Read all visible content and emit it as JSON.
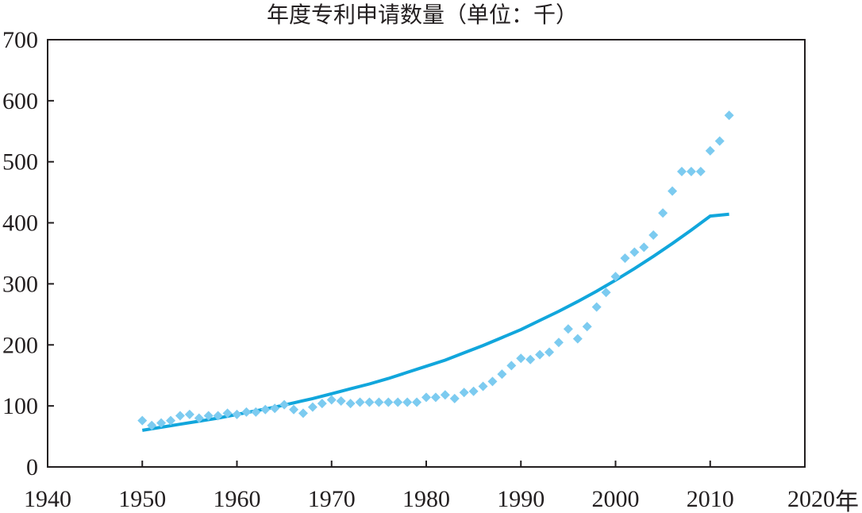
{
  "chart_data": {
    "type": "scatter",
    "title": "年度专利申请数量（单位：千）",
    "xlabel": "年",
    "ylabel": "",
    "xlim": [
      1940,
      2020
    ],
    "ylim": [
      0,
      700
    ],
    "xticks": [
      1940,
      1950,
      1960,
      1970,
      1980,
      1990,
      2000,
      2010,
      2020
    ],
    "yticks": [
      0,
      100,
      200,
      300,
      400,
      500,
      600,
      700
    ],
    "grid": false,
    "colors": {
      "points": "#7ccbf0",
      "trend": "#11a6dc",
      "axis": "#231f20"
    },
    "series": [
      {
        "type": "scatter",
        "marker": "diamond",
        "x": [
          1950,
          1951,
          1952,
          1953,
          1954,
          1955,
          1956,
          1957,
          1958,
          1959,
          1960,
          1961,
          1962,
          1963,
          1964,
          1965,
          1966,
          1967,
          1968,
          1969,
          1970,
          1971,
          1972,
          1973,
          1974,
          1975,
          1976,
          1977,
          1978,
          1979,
          1980,
          1981,
          1982,
          1983,
          1984,
          1985,
          1986,
          1987,
          1988,
          1989,
          1990,
          1991,
          1992,
          1993,
          1994,
          1995,
          1996,
          1997,
          1998,
          1999,
          2000,
          2001,
          2002,
          2003,
          2004,
          2005,
          2006,
          2007,
          2008,
          2009,
          2010,
          2011,
          2012
        ],
        "y": [
          76,
          68,
          72,
          76,
          84,
          86,
          80,
          84,
          84,
          88,
          86,
          90,
          90,
          94,
          96,
          102,
          94,
          88,
          98,
          104,
          110,
          108,
          104,
          106,
          106,
          106,
          106,
          106,
          106,
          106,
          114,
          114,
          118,
          112,
          122,
          124,
          132,
          140,
          152,
          166,
          178,
          176,
          184,
          188,
          204,
          226,
          210,
          230,
          262,
          286,
          312,
          342,
          352,
          360,
          380,
          416,
          452,
          484,
          484,
          484,
          518,
          534,
          576
        ]
      },
      {
        "type": "line",
        "x": [
          1950,
          1952,
          1954,
          1956,
          1958,
          1960,
          1962,
          1964,
          1966,
          1968,
          1970,
          1972,
          1974,
          1976,
          1978,
          1980,
          1982,
          1984,
          1986,
          1988,
          1990,
          1992,
          1994,
          1996,
          1998,
          2000,
          2002,
          2004,
          2006,
          2008,
          2010,
          2012
        ],
        "y": [
          60,
          65,
          70,
          75,
          80,
          86,
          92,
          98,
          105,
          112,
          120,
          128,
          136,
          145,
          155,
          165,
          175,
          187,
          199,
          212,
          225,
          240,
          255,
          271,
          288,
          306,
          325,
          345,
          366,
          388,
          411,
          414
        ]
      }
    ]
  }
}
